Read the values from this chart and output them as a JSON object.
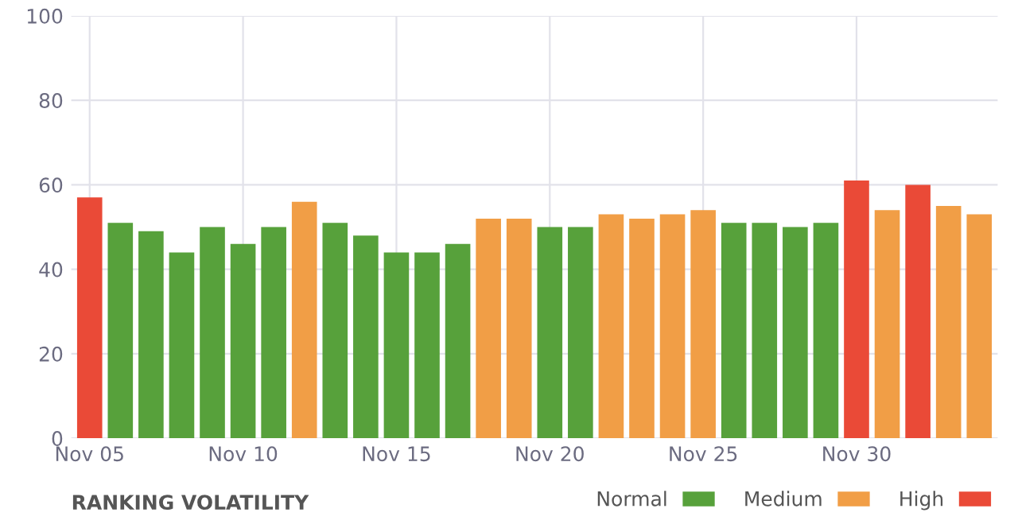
{
  "chart_data": {
    "type": "bar",
    "title": "RANKING VOLATILITY",
    "categories": [
      "Nov 05",
      null,
      null,
      null,
      null,
      "Nov 10",
      null,
      null,
      null,
      null,
      "Nov 15",
      null,
      null,
      null,
      null,
      "Nov 20",
      null,
      null,
      null,
      null,
      "Nov 25",
      null,
      null,
      null,
      null,
      "Nov 30",
      null,
      null,
      null,
      null
    ],
    "series": [
      {
        "name": "Normal",
        "color": "#57a13b",
        "values": [
          null,
          51,
          49,
          44,
          50,
          46,
          50,
          null,
          51,
          48,
          44,
          44,
          46,
          null,
          null,
          50,
          50,
          null,
          null,
          null,
          null,
          51,
          51,
          50,
          51,
          null,
          null,
          null,
          null,
          null
        ]
      },
      {
        "name": "Medium",
        "color": "#f19e46",
        "values": [
          null,
          null,
          null,
          null,
          null,
          null,
          null,
          56,
          null,
          null,
          null,
          null,
          null,
          52,
          52,
          null,
          null,
          53,
          52,
          53,
          54,
          null,
          null,
          null,
          null,
          null,
          54,
          null,
          55,
          53
        ]
      },
      {
        "name": "High",
        "color": "#ea4a37",
        "values": [
          57,
          null,
          null,
          null,
          null,
          null,
          null,
          null,
          null,
          null,
          null,
          null,
          null,
          null,
          null,
          null,
          null,
          null,
          null,
          null,
          null,
          null,
          null,
          null,
          null,
          61,
          null,
          60,
          null,
          null
        ]
      }
    ],
    "ylim": [
      0,
      100
    ],
    "yticks": [
      0,
      20,
      40,
      60,
      80,
      100
    ],
    "grid": true,
    "legend": "bottom right"
  }
}
